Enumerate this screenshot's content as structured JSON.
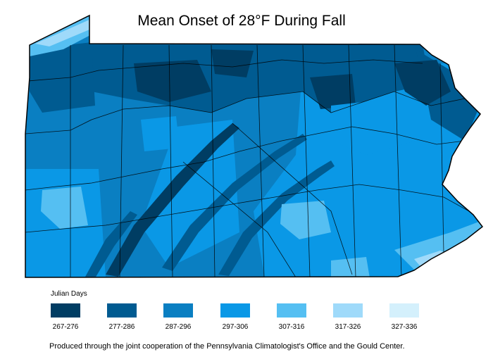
{
  "title": "Mean Onset of 28°F During Fall",
  "legend": {
    "title": "Julian Days",
    "items": [
      {
        "label": "267-276",
        "color": "#003d63"
      },
      {
        "label": "277-286",
        "color": "#005b91"
      },
      {
        "label": "287-296",
        "color": "#0a7fc2"
      },
      {
        "label": "297-306",
        "color": "#0a98e6"
      },
      {
        "label": "307-316",
        "color": "#55bff2"
      },
      {
        "label": "317-326",
        "color": "#9fdafa"
      },
      {
        "label": "327-336",
        "color": "#d4f0fc"
      }
    ]
  },
  "footer": "Produced through the joint cooperation of the Pennsylvania Climatologist's Office and the Gould Center."
}
